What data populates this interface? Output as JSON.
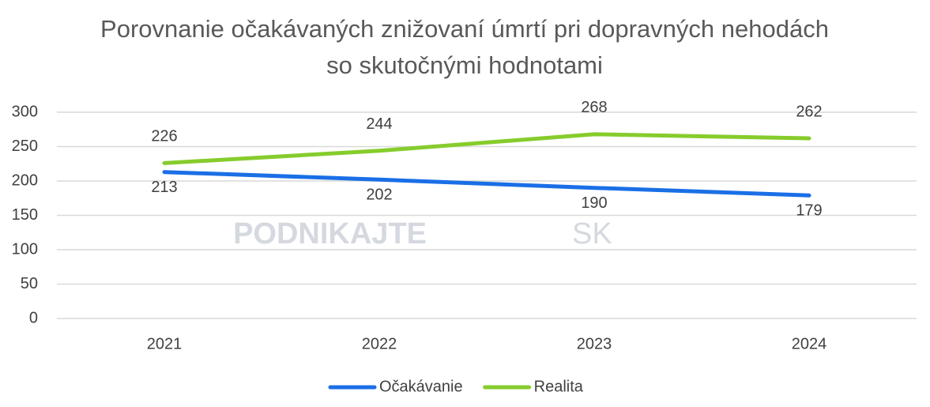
{
  "chart_data": {
    "type": "line",
    "title": "Porovnanie očakávaných znižovaní úmrtí pri dopravných nehodách so skutočnými hodnotami",
    "categories": [
      "2021",
      "2022",
      "2023",
      "2024"
    ],
    "series": [
      {
        "name": "Očakávanie",
        "color": "#1a6fe6",
        "values": [
          213,
          202,
          190,
          179
        ]
      },
      {
        "name": "Realita",
        "color": "#86cc2c",
        "values": [
          226,
          244,
          268,
          262
        ]
      }
    ],
    "ylim": [
      0,
      300
    ],
    "yticks": [
      0,
      50,
      100,
      150,
      200,
      250,
      300
    ],
    "grid": true,
    "legend": "bottom",
    "watermark": [
      "PODNIKAJTE",
      "SK"
    ]
  }
}
